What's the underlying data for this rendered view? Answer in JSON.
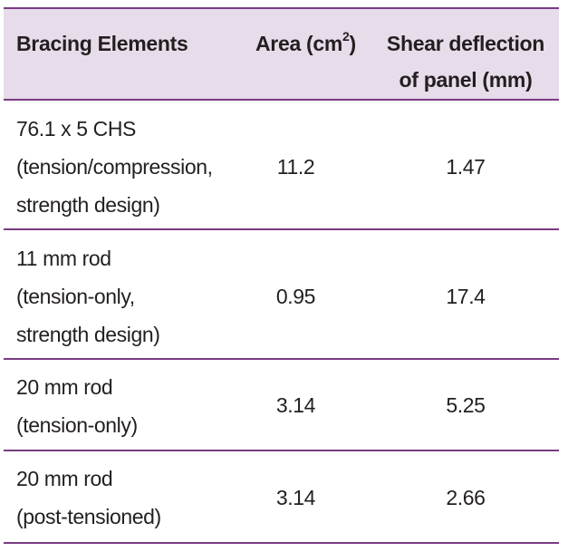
{
  "table": {
    "headers": {
      "elements": "Bracing Elements",
      "area_prefix": "Area (cm",
      "area_sup": "2",
      "area_suffix": ")",
      "deflection_line1": "Shear deflection",
      "deflection_line2": "of panel (mm)"
    },
    "rows": [
      {
        "description": "76.1 x 5 CHS\n(tension/compression,\nstrength design)",
        "area": "11.2",
        "deflection": "1.47"
      },
      {
        "description": "11 mm rod\n(tension-only,\nstrength design)",
        "area": "0.95",
        "deflection": "17.4"
      },
      {
        "description": "20 mm rod\n(tension-only)",
        "area": "3.14",
        "deflection": "5.25"
      },
      {
        "description": "20 mm rod\n(post-tensioned)",
        "area": "3.14",
        "deflection": "2.66"
      }
    ],
    "colors": {
      "header_background": "#e7dcea",
      "rule": "#7a3b82",
      "text": "#231f20"
    }
  }
}
